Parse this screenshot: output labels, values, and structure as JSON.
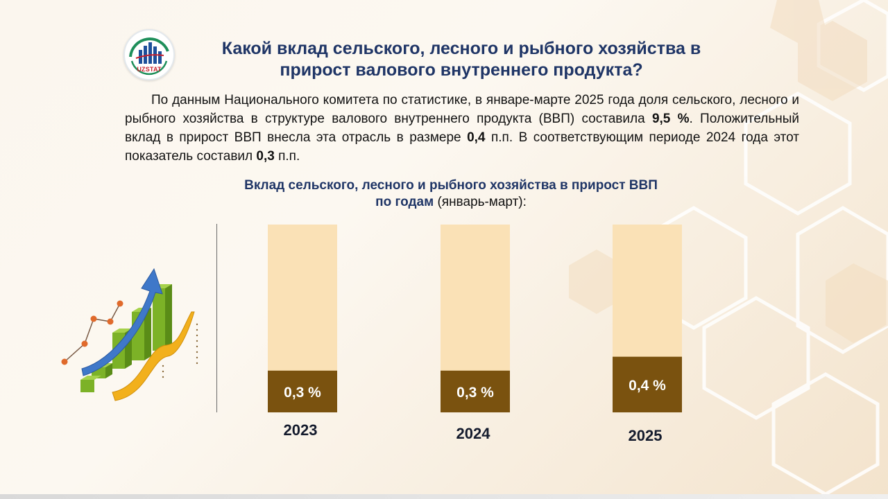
{
  "logo": {
    "text": "UZSTAT"
  },
  "title": {
    "line1": "Какой вклад сельского, лесного и рыбного хозяйства в",
    "line2": "прирост валового внутреннего продукта?"
  },
  "intro": {
    "p1": "По данным Национального комитета по статистике, в январе-марте 2025 года доля сельского, лесного и рыбного хозяйства в структуре валового внутреннего продукта (ВВП) составила ",
    "share": "9,5 %",
    "p2": ". Положительный вклад в прирост ВВП внесла эта отрасль в размере ",
    "contribution": "0,4",
    "p3": " п.п. В соответствующим периоде 2024 года этот показатель составил ",
    "prev": "0,3",
    "p4": " п.п."
  },
  "chart_data": {
    "type": "bar",
    "title": "Вклад сельского, лесного и рыбного хозяйства в прирост ВВП",
    "subtitle_bold": "по годам",
    "subtitle_normal": " (январь-март):",
    "categories": [
      "2023",
      "2024",
      "2025"
    ],
    "values": [
      0.3,
      0.3,
      0.4
    ],
    "value_labels": [
      "0,3 %",
      "0,3 %",
      "0,4 %"
    ],
    "ylim": [
      0,
      1.35
    ],
    "colors": {
      "value_fill": "#7a520f",
      "background_fill": "#fae1b6",
      "label_text": "#ffffff",
      "category_text": "#141b2d"
    }
  }
}
